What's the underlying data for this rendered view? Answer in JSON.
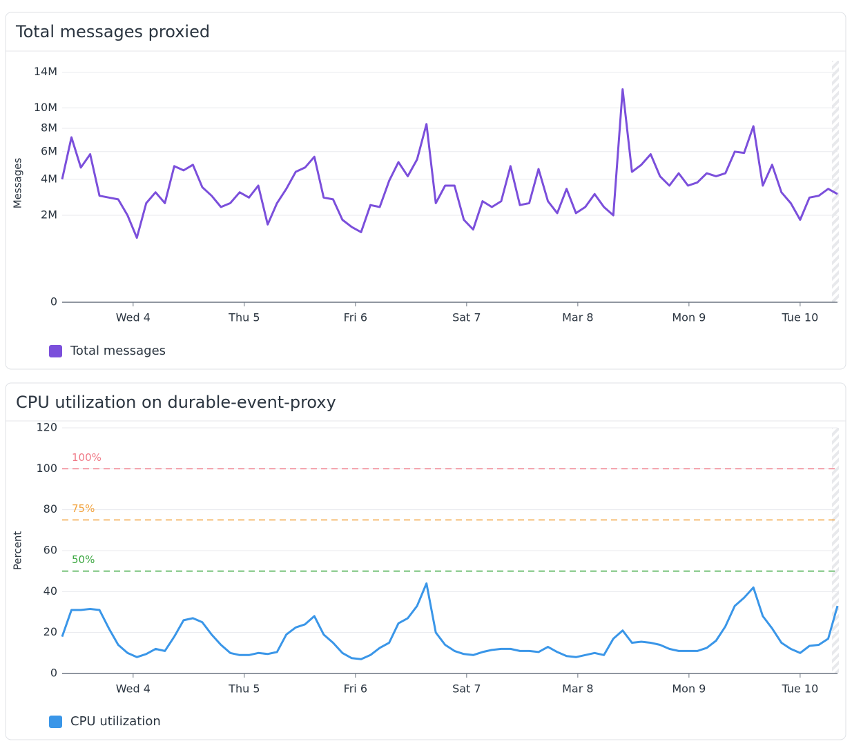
{
  "chart_data": [
    {
      "type": "line",
      "title": "Total messages proxied",
      "y_label": "Messages",
      "scale": "sqrt",
      "series": [
        {
          "name": "Total messages",
          "color": "#7b4fdb",
          "values": [
            4000000,
            7200000,
            4800000,
            5800000,
            3000000,
            2900000,
            2800000,
            2000000,
            1100000,
            2600000,
            3200000,
            2600000,
            4900000,
            4600000,
            5000000,
            3500000,
            3000000,
            2400000,
            2600000,
            3200000,
            2900000,
            3600000,
            1600000,
            2600000,
            3400000,
            4500000,
            4800000,
            5600000,
            2900000,
            2800000,
            1800000,
            1500000,
            1300000,
            2500000,
            2400000,
            3900000,
            5200000,
            4200000,
            5400000,
            8400000,
            2600000,
            3600000,
            3600000,
            1800000,
            1400000,
            2700000,
            2400000,
            2700000,
            4900000,
            2500000,
            2600000,
            4700000,
            2700000,
            2100000,
            3400000,
            2100000,
            2400000,
            3100000,
            2400000,
            2000000,
            12000000,
            4500000,
            5000000,
            5800000,
            4200000,
            3600000,
            4400000,
            3600000,
            3800000,
            4400000,
            4200000,
            4400000,
            6000000,
            5900000,
            8200000,
            3600000,
            5000000,
            3200000,
            2600000,
            1800000,
            2900000,
            3000000,
            3400000,
            3100000
          ]
        }
      ],
      "xlim": [
        0,
        83
      ],
      "xticks": [
        {
          "value": 7.6,
          "label": "Wed 4"
        },
        {
          "value": 19.5,
          "label": "Thu 5"
        },
        {
          "value": 31.4,
          "label": "Fri 6"
        },
        {
          "value": 43.3,
          "label": "Sat 7"
        },
        {
          "value": 55.2,
          "label": "Mar 8"
        },
        {
          "value": 67.1,
          "label": "Mon 9"
        },
        {
          "value": 79.0,
          "label": "Tue 10"
        }
      ],
      "ylim": [
        0,
        15000000
      ],
      "yticks": [
        0,
        {
          "value": 2000000,
          "label": "2M"
        },
        {
          "value": 4000000,
          "label": "4M"
        },
        {
          "value": 6000000,
          "label": "6M"
        },
        {
          "value": 8000000,
          "label": "8M"
        },
        {
          "value": 10000000,
          "label": "10M"
        },
        {
          "value": 14000000,
          "label": "14M"
        }
      ],
      "grid": true
    },
    {
      "type": "line",
      "title": "CPU utilization on durable-event-proxy",
      "y_label": "Percent",
      "scale": "linear",
      "series": [
        {
          "name": "CPU utilization",
          "color": "#3a96e8",
          "values": [
            18,
            31,
            31,
            31.5,
            31,
            22,
            14,
            10,
            8,
            9.5,
            12,
            11,
            18,
            26,
            27,
            25,
            19,
            14,
            10,
            9,
            9,
            10,
            9.5,
            10.5,
            19,
            22.5,
            24,
            28,
            19,
            15,
            10,
            7.5,
            7,
            9,
            12.5,
            15,
            24.5,
            27,
            33,
            44,
            20,
            14,
            11,
            9.5,
            9,
            10.5,
            11.5,
            12,
            12,
            11,
            11,
            10.5,
            13,
            10.5,
            8.5,
            8,
            9,
            10,
            9,
            17,
            21,
            15,
            15.5,
            15,
            14,
            12,
            11,
            11,
            11,
            12.5,
            16,
            23,
            33,
            37,
            42,
            28,
            22,
            15,
            12,
            10,
            13.5,
            14,
            17,
            33
          ]
        }
      ],
      "xlim": [
        0,
        83
      ],
      "xticks": [
        {
          "value": 7.6,
          "label": "Wed 4"
        },
        {
          "value": 19.5,
          "label": "Thu 5"
        },
        {
          "value": 31.4,
          "label": "Fri 6"
        },
        {
          "value": 43.3,
          "label": "Sat 7"
        },
        {
          "value": 55.2,
          "label": "Mar 8"
        },
        {
          "value": 67.1,
          "label": "Mon 9"
        },
        {
          "value": 79.0,
          "label": "Tue 10"
        }
      ],
      "ylim": [
        0,
        120
      ],
      "yticks": [
        0,
        20,
        40,
        60,
        80,
        100,
        120
      ],
      "thresholds": [
        {
          "value": 100,
          "label": "100%",
          "color": "#f07a87"
        },
        {
          "value": 75,
          "label": "75%",
          "color": "#f2a23c"
        },
        {
          "value": 50,
          "label": "50%",
          "color": "#3aa63f"
        }
      ],
      "grid": true
    }
  ]
}
